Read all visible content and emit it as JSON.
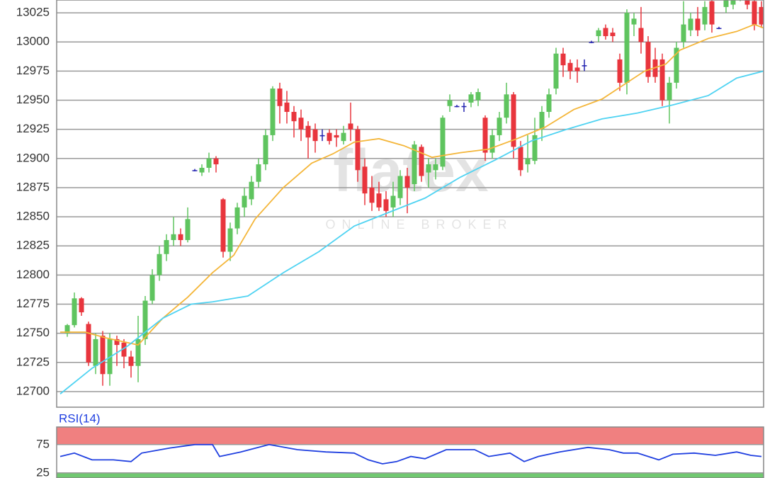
{
  "chart_data": [
    {
      "type": "candlestick",
      "watermark": {
        "title": "flatex",
        "subtitle": "ONLINE BROKER"
      },
      "xlim": [
        -1.5,
        98.3
      ],
      "ylim": [
        12686.6,
        13036
      ],
      "yticks": [
        12700,
        12725,
        12750,
        12775,
        12800,
        12825,
        12850,
        12875,
        12900,
        12925,
        12950,
        12975,
        13000,
        13025
      ],
      "grid": true,
      "up_color": "#5fc45f",
      "down_color": "#e8353d",
      "doji_color": "#2222b0",
      "open": [
        12750,
        12757,
        12780,
        12758,
        12722,
        12748,
        12715,
        12745,
        12742,
        12730,
        12722,
        12745,
        12778,
        12800,
        12818,
        12830,
        12835,
        12830,
        12890,
        12888,
        12892,
        12900,
        12865,
        12820,
        12840,
        12858,
        12865,
        12880,
        12895,
        12920,
        12960,
        12948,
        12940,
        12935,
        12928,
        12925,
        12920,
        12922,
        12920,
        12915,
        12930,
        12925,
        12893,
        12875,
        12870,
        12865,
        12858,
        12866,
        12885,
        12878,
        12910,
        12888,
        12890,
        12893,
        12945,
        12945,
        12945,
        12948,
        12950,
        12935,
        12905,
        12920,
        12935,
        12955,
        12910,
        12895,
        12898,
        12925,
        12940,
        12960,
        12990,
        12982,
        12978,
        12980,
        13000,
        13005,
        13012,
        13008,
        12985,
        12965,
        13015,
        13012,
        13000,
        12985,
        12985,
        12950,
        12965,
        13000,
        13010,
        13020,
        13015,
        13035,
        13012,
        13030,
        13032,
        13040,
        13040,
        13035,
        13030
      ],
      "high": [
        12758,
        12785,
        12781,
        12760,
        12750,
        12752,
        12750,
        12748,
        12745,
        12735,
        12765,
        12782,
        12805,
        12825,
        12835,
        12850,
        12840,
        12858,
        12891,
        12895,
        12905,
        12902,
        12866,
        12845,
        12862,
        12875,
        12885,
        12900,
        12925,
        12962,
        12965,
        12958,
        12945,
        12942,
        12932,
        12930,
        12925,
        12925,
        12925,
        12928,
        12948,
        12928,
        12900,
        12885,
        12880,
        12872,
        12880,
        12890,
        12892,
        12915,
        12912,
        12900,
        12900,
        12937,
        12955,
        12946,
        12948,
        12957,
        12960,
        12937,
        12925,
        12940,
        12965,
        12957,
        12915,
        12920,
        12935,
        12945,
        12960,
        12995,
        12995,
        12985,
        12985,
        12985,
        13001,
        13012,
        13015,
        13012,
        12990,
        13028,
        13025,
        13030,
        13005,
        12995,
        12990,
        12970,
        13000,
        13035,
        13025,
        13030,
        13035,
        13040,
        13013,
        13042,
        13045,
        13048,
        13045,
        13040,
        13035
      ],
      "low": [
        12747,
        12755,
        12765,
        12722,
        12715,
        12705,
        12705,
        12722,
        12720,
        12712,
        12708,
        12740,
        12775,
        12795,
        12812,
        12825,
        12825,
        12828,
        12889,
        12885,
        12888,
        12888,
        12815,
        12812,
        12835,
        12850,
        12860,
        12875,
        12890,
        12915,
        12930,
        12930,
        12918,
        12915,
        12900,
        12905,
        12915,
        12912,
        12910,
        12912,
        12915,
        12880,
        12860,
        12855,
        12855,
        12850,
        12850,
        12860,
        12853,
        12872,
        12880,
        12875,
        12882,
        12890,
        12940,
        12944,
        12940,
        12944,
        12945,
        12898,
        12900,
        12915,
        12930,
        12900,
        12885,
        12888,
        12895,
        12915,
        12935,
        12955,
        12970,
        12968,
        12965,
        12975,
        12999,
        13000,
        13002,
        13000,
        12958,
        12955,
        13005,
        12990,
        12965,
        12965,
        12945,
        12930,
        12960,
        12995,
        13005,
        13005,
        13010,
        13008,
        13011,
        13025,
        13028,
        13035,
        13028,
        13010,
        13012
      ],
      "close": [
        12757,
        12780,
        12768,
        12725,
        12745,
        12715,
        12745,
        12740,
        12730,
        12722,
        12745,
        12778,
        12800,
        12818,
        12830,
        12835,
        12830,
        12848,
        12890,
        12892,
        12900,
        12895,
        12820,
        12840,
        12858,
        12868,
        12880,
        12895,
        12920,
        12960,
        12945,
        12940,
        12932,
        12925,
        12918,
        12915,
        12920,
        12915,
        12918,
        12922,
        12925,
        12890,
        12870,
        12862,
        12858,
        12855,
        12868,
        12885,
        12875,
        12912,
        12885,
        12895,
        12895,
        12935,
        12950,
        12945,
        12945,
        12955,
        12957,
        12905,
        12920,
        12935,
        12955,
        12910,
        12890,
        12900,
        12920,
        12940,
        12955,
        12990,
        12980,
        12975,
        12975,
        12980,
        13000,
        13010,
        13005,
        13005,
        12965,
        13025,
        13020,
        13000,
        12970,
        12970,
        12950,
        12965,
        12995,
        13015,
        13020,
        13010,
        13030,
        13015,
        13012,
        13038,
        13040,
        13045,
        13032,
        13015,
        13015
      ],
      "series": [
        {
          "color": "#f4b63a",
          "x": [
            -1,
            2.5,
            5.5,
            10,
            13.5,
            17,
            20.5,
            23.5,
            26.5,
            30.5,
            34.5,
            37.5,
            40.5,
            44,
            47.5,
            51.5,
            55.5,
            59.5,
            63.5,
            67.5,
            71.5,
            75.5,
            78.5,
            81.5,
            84.5,
            86.5,
            90.5,
            94.5,
            97,
            98.3
          ],
          "values": [
            12751,
            12751,
            12746,
            12740,
            12763,
            12781,
            12802,
            12817,
            12848,
            12875,
            12896,
            12904,
            12914,
            12917,
            12911,
            12901,
            12905,
            12908,
            12917,
            12927,
            12942,
            12951,
            12963,
            12975,
            12981,
            12993,
            13003,
            13009,
            13015,
            13012
          ]
        },
        {
          "color": "#4fd3f2",
          "x": [
            -1,
            3.5,
            8.5,
            13.5,
            17.5,
            20.5,
            25.5,
            30.5,
            35.5,
            40.5,
            45.5,
            50.5,
            55.5,
            60.5,
            65.5,
            70.5,
            75.5,
            80.5,
            85.5,
            90.5,
            94.5,
            98.3
          ],
          "values": [
            12698,
            12720,
            12739,
            12763,
            12775,
            12777,
            12782,
            12802,
            12820,
            12842,
            12854,
            12866,
            12884,
            12899,
            12915,
            12925,
            12934,
            12939,
            12946,
            12954,
            12969,
            12975
          ]
        }
      ]
    },
    {
      "type": "line",
      "title": "RSI(14)",
      "xlim": [
        -1.5,
        98.3
      ],
      "ylim": [
        16,
        106
      ],
      "yticks": [
        25,
        75
      ],
      "overbought": 75,
      "oversold": 25,
      "overbought_color": "#f08080",
      "oversold_color": "#70c870",
      "series": [
        {
          "color": "#1f3fe0",
          "x": [
            -1,
            1,
            3.5,
            6.5,
            9,
            10.5,
            14.5,
            18,
            20.5,
            21.5,
            24.5,
            28.5,
            32.5,
            36.5,
            40.5,
            42.5,
            44.5,
            46.5,
            48.5,
            50.5,
            53.5,
            57.5,
            59.5,
            62.5,
            64.5,
            66.5,
            69.5,
            73.5,
            76.5,
            78.5,
            80.5,
            83.5,
            85.5,
            88.5,
            91.5,
            94.5,
            96.5,
            98
          ],
          "values": [
            54,
            60,
            48,
            48,
            45,
            60,
            69,
            75,
            75,
            54,
            62,
            75,
            66,
            62,
            60,
            48,
            41,
            45,
            54,
            50,
            66,
            66,
            54,
            60,
            45,
            54,
            62,
            70,
            66,
            60,
            60,
            48,
            58,
            60,
            56,
            62,
            56,
            54
          ]
        }
      ]
    }
  ]
}
